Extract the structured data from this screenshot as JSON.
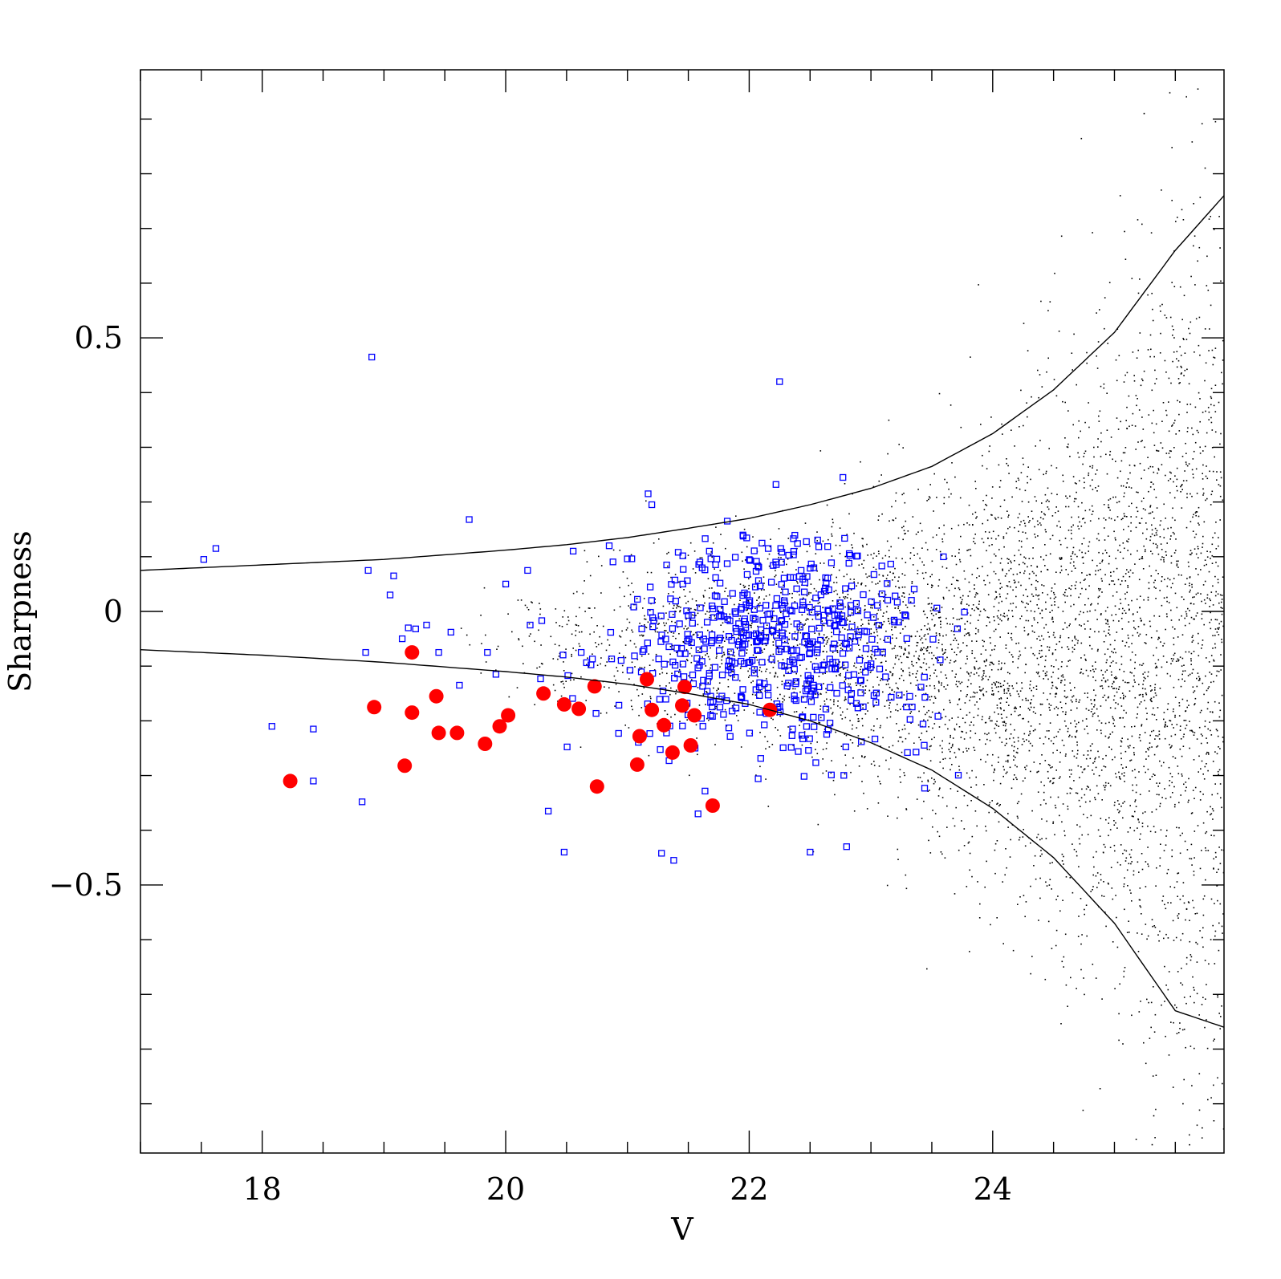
{
  "chart_data": {
    "type": "scatter",
    "title": "",
    "xlabel": "V",
    "ylabel": "Sharpness",
    "xlim": [
      17.0,
      25.9
    ],
    "ylim": [
      -0.99,
      0.99
    ],
    "x_major_ticks": [
      18,
      20,
      22,
      24
    ],
    "x_tick_labels": [
      "18",
      "20",
      "22",
      "24"
    ],
    "x_minor_step": 0.5,
    "y_major_ticks": [
      -0.5,
      0,
      0.5
    ],
    "y_tick_labels": [
      "−0.5",
      "0",
      "0.5"
    ],
    "y_minor_step": 0.1,
    "grid": false,
    "legend": "none",
    "colors": {
      "background": "#ffffff",
      "axes": "#000000",
      "boundary_curve": "#000000",
      "all_sources": "#000000",
      "selected_squares": "#0000ff",
      "highlighted_circles": "#ff0000"
    },
    "boundary_curves": {
      "description_note": "",
      "x": [
        17.0,
        18.0,
        19.0,
        20.0,
        20.5,
        21.0,
        21.5,
        22.0,
        22.5,
        23.0,
        23.5,
        24.0,
        24.5,
        25.0,
        25.5,
        25.9
      ],
      "upper": [
        0.075,
        0.085,
        0.095,
        0.112,
        0.122,
        0.135,
        0.152,
        0.17,
        0.195,
        0.225,
        0.265,
        0.325,
        0.405,
        0.51,
        0.66,
        0.76
      ],
      "lower": [
        -0.07,
        -0.08,
        -0.093,
        -0.11,
        -0.12,
        -0.133,
        -0.15,
        -0.17,
        -0.2,
        -0.24,
        -0.29,
        -0.36,
        -0.45,
        -0.57,
        -0.73,
        -0.76
      ]
    },
    "series": [
      {
        "marker": "filled-circle",
        "color": "#ff0000",
        "points": [
          [
            18.23,
            -0.31
          ],
          [
            18.92,
            -0.175
          ],
          [
            19.17,
            -0.282
          ],
          [
            19.23,
            -0.185
          ],
          [
            19.23,
            -0.075
          ],
          [
            19.43,
            -0.155
          ],
          [
            19.45,
            -0.222
          ],
          [
            19.6,
            -0.222
          ],
          [
            19.83,
            -0.242
          ],
          [
            19.95,
            -0.21
          ],
          [
            20.02,
            -0.19
          ],
          [
            20.31,
            -0.15
          ],
          [
            20.48,
            -0.17
          ],
          [
            20.6,
            -0.178
          ],
          [
            20.73,
            -0.137
          ],
          [
            20.75,
            -0.32
          ],
          [
            21.08,
            -0.28
          ],
          [
            21.1,
            -0.228
          ],
          [
            21.16,
            -0.124
          ],
          [
            21.2,
            -0.18
          ],
          [
            21.3,
            -0.208
          ],
          [
            21.37,
            -0.258
          ],
          [
            21.45,
            -0.172
          ],
          [
            21.47,
            -0.138
          ],
          [
            21.52,
            -0.245
          ],
          [
            21.55,
            -0.19
          ],
          [
            21.7,
            -0.355
          ],
          [
            22.17,
            -0.18
          ]
        ]
      },
      {
        "marker": "open-square",
        "color": "#0000ff",
        "points": [
          [
            17.52,
            0.095
          ],
          [
            17.62,
            0.115
          ],
          [
            18.08,
            -0.21
          ],
          [
            18.42,
            -0.215
          ],
          [
            18.42,
            -0.31
          ],
          [
            18.82,
            -0.348
          ],
          [
            18.85,
            -0.075
          ],
          [
            18.87,
            0.075
          ],
          [
            18.9,
            0.465
          ],
          [
            19.05,
            0.03
          ],
          [
            19.08,
            0.065
          ],
          [
            19.15,
            -0.05
          ],
          [
            19.2,
            -0.03
          ],
          [
            19.26,
            -0.032
          ],
          [
            19.35,
            -0.025
          ],
          [
            19.45,
            -0.075
          ],
          [
            19.55,
            -0.038
          ],
          [
            19.62,
            -0.135
          ],
          [
            19.7,
            0.168
          ],
          [
            19.85,
            -0.075
          ],
          [
            19.92,
            -0.115
          ],
          [
            20.0,
            0.05
          ],
          [
            20.18,
            0.075
          ],
          [
            20.35,
            -0.365
          ],
          [
            20.48,
            -0.44
          ],
          [
            20.62,
            -0.075
          ],
          [
            20.85,
            0.12
          ],
          [
            21.17,
            0.215
          ],
          [
            21.2,
            0.195
          ],
          [
            21.28,
            -0.442
          ],
          [
            21.38,
            -0.455
          ],
          [
            21.58,
            -0.37
          ],
          [
            21.82,
            0.165
          ],
          [
            22.22,
            0.232
          ],
          [
            22.25,
            0.42
          ],
          [
            22.5,
            -0.44
          ],
          [
            22.77,
            0.245
          ],
          [
            22.8,
            -0.43
          ],
          [
            23.3,
            -0.258
          ]
        ],
        "cloud": {
          "count": 560,
          "x_range": [
            20.0,
            23.8
          ],
          "center": [
            22.2,
            -0.05
          ],
          "spread": [
            0.65,
            0.1
          ]
        }
      },
      {
        "marker": "dot",
        "color": "#000000",
        "cloud": {
          "count": 5200,
          "x_range": [
            19.5,
            25.9
          ],
          "envelope": "boundary_curves"
        }
      }
    ]
  }
}
